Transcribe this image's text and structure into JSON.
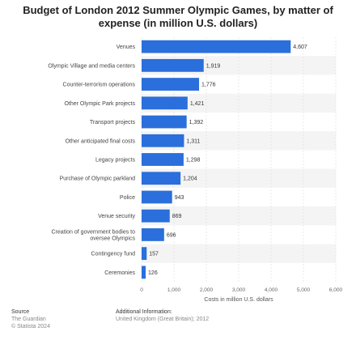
{
  "chart_data": {
    "type": "bar",
    "orientation": "horizontal",
    "title": "Budget of London 2012 Summer Olympic Games, by matter of expense (in million U.S. dollars)",
    "xlabel": "Costs in million U.S. dollars",
    "ylabel": "",
    "xlim": [
      0,
      6000
    ],
    "x_ticks": [
      "0",
      "1,000",
      "2,000",
      "3,000",
      "4,000",
      "5,000",
      "6,000"
    ],
    "grid": true,
    "bar_color": "#2a6fdb",
    "categories": [
      "Venues",
      "Olympic Village and media centers",
      "Counter-terrorism operations",
      "Other Olympic Park projects",
      "Transport projects",
      "Other anticipated final costs",
      "Legacy projects",
      "Purchase of Olympic parkland",
      "Police",
      "Venue security",
      "Creation of government bodies to oversee Olympics",
      "Contingency fund",
      "Ceremonies"
    ],
    "values": [
      4607,
      1919,
      1776,
      1421,
      1392,
      1311,
      1298,
      1204,
      943,
      869,
      696,
      157,
      126
    ],
    "value_labels": [
      "4,607",
      "1,919",
      "1,776",
      "1,421",
      "1,392",
      "1,311",
      "1,298",
      "1,204",
      "943",
      "869",
      "696",
      "157",
      "126"
    ]
  },
  "footer": {
    "source_heading": "Source",
    "source_name": "The Guardian",
    "copyright": "© Statista 2024",
    "info_heading": "Additional Information:",
    "info_text": "United Kingdom (Great Britain); 2012"
  }
}
